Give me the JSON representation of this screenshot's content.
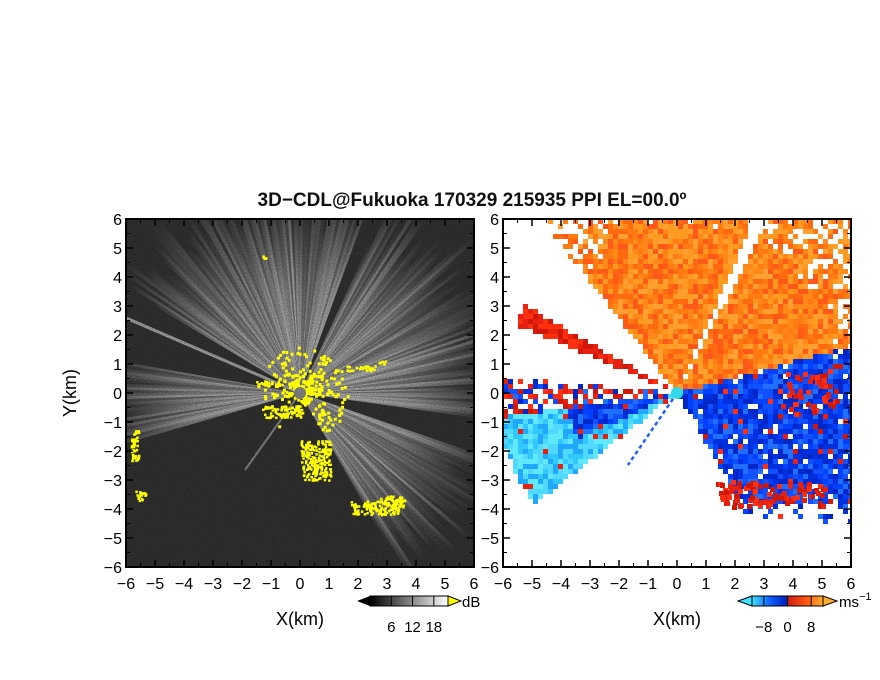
{
  "chart_data": [
    {
      "type": "heatmap",
      "panel": "reflectivity",
      "title": "3D−CDL@Fukuoka 170329 215935 PPI EL=00.0º",
      "xlabel": "X(km)",
      "ylabel": "Y(km)",
      "xlim": [
        -6,
        6
      ],
      "ylim": [
        -6,
        6
      ],
      "xticks": [
        "−6",
        "−5",
        "−4",
        "−3",
        "−2",
        "−1",
        "0",
        "1",
        "2",
        "3",
        "4",
        "5",
        "6"
      ],
      "yticks": [
        "6",
        "5",
        "4",
        "3",
        "2",
        "1",
        "0",
        "−1",
        "−2",
        "−3",
        "−4",
        "−5",
        "−6"
      ],
      "colorbar": {
        "unit": "dB",
        "ticks": [
          "6",
          "12",
          "18"
        ],
        "tick_values": [
          6,
          12,
          18
        ],
        "range": [
          0,
          22
        ],
        "colormap": "grayscale",
        "low_color": "#000000",
        "high_color": "#ffffff",
        "over_color": "#ffff00"
      },
      "colors": {
        "background_noise": "#3a3a3a",
        "saturated": "#ffff00",
        "radar_marker": "#777777"
      }
    },
    {
      "type": "heatmap",
      "panel": "doppler_velocity",
      "xlabel": "X(km)",
      "ylabel": "",
      "xlim": [
        -6,
        6
      ],
      "ylim": [
        -6,
        6
      ],
      "xticks": [
        "−6",
        "−5",
        "−4",
        "−3",
        "−2",
        "−1",
        "0",
        "1",
        "2",
        "3",
        "4",
        "5",
        "6"
      ],
      "yticks": [
        "6",
        "5",
        "4",
        "3",
        "2",
        "1",
        "0",
        "−1",
        "−2",
        "−3",
        "−4",
        "−5",
        "−6"
      ],
      "colorbar": {
        "unit": "ms",
        "unit_exponent": "−1",
        "ticks": [
          "−8",
          "0",
          "8"
        ],
        "tick_values": [
          -8,
          0,
          8
        ],
        "range": [
          -12,
          12
        ],
        "colormap": "cyan-blue-red-orange",
        "colors": [
          "#40e0ff",
          "#1060ff",
          "#0020c0",
          "#d02010",
          "#ff4010",
          "#ff8010",
          "#ffb030"
        ]
      },
      "colors": {
        "no_data": "#ffffff",
        "radar_marker": "#30d8e8"
      }
    }
  ]
}
